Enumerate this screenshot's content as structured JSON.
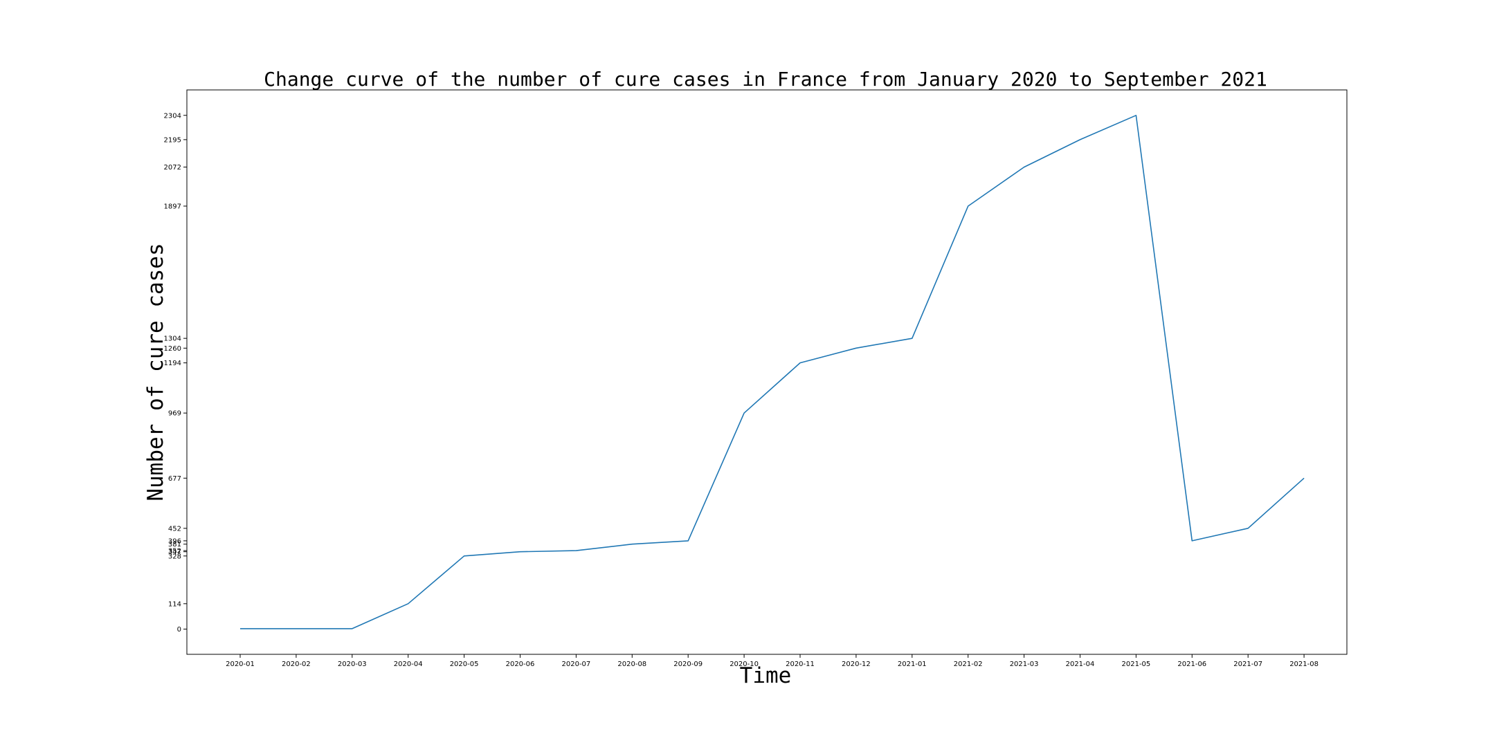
{
  "chart_data": {
    "type": "line",
    "title": "Change curve of the number of cure cases in France from January 2020 to September 2021",
    "xlabel": "Time",
    "ylabel": "Number of cure cases",
    "categories": [
      "2020-01",
      "2020-02",
      "2020-03",
      "2020-04",
      "2020-05",
      "2020-06",
      "2020-07",
      "2020-08",
      "2020-09",
      "2020-10",
      "2020-11",
      "2020-12",
      "2021-01",
      "2021-02",
      "2021-03",
      "2021-04",
      "2021-05",
      "2021-06",
      "2021-07",
      "2021-08"
    ],
    "values": [
      2,
      2,
      2,
      114,
      328,
      347,
      352,
      381,
      396,
      969,
      1194,
      1260,
      1304,
      1897,
      2072,
      2195,
      2304,
      396,
      452,
      677
    ],
    "yticks": [
      0,
      114,
      328,
      347,
      352,
      381,
      396,
      452,
      677,
      969,
      1194,
      1260,
      1304,
      1897,
      2072,
      2195,
      2304
    ],
    "ylim": [
      -113,
      2418
    ],
    "grid": false,
    "line_color": "#1f77b4"
  }
}
